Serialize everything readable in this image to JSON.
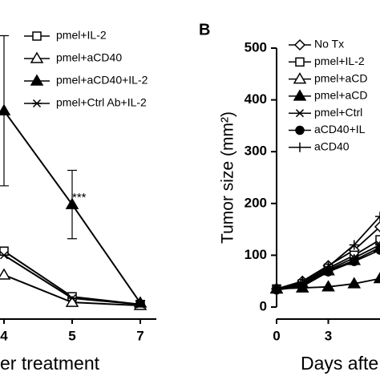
{
  "chart_data": [
    {
      "type": "line",
      "x_label": "er treatment",
      "annotation": "***",
      "categories": [
        "4",
        "5",
        "7"
      ],
      "ylim": [
        0,
        500
      ],
      "series": [
        {
          "name": "pmel+IL-2",
          "color": "#000000",
          "marker": "square",
          "values": [
            108,
            20,
            5
          ]
        },
        {
          "name": "pmel+aCD40",
          "color": "#000000",
          "marker": "triangle",
          "values": [
            62,
            9,
            3
          ]
        },
        {
          "name": "pmel+aCD40+IL-2",
          "color": "#000000",
          "marker": "triangle-filled",
          "values": [
            379,
            198,
            8
          ],
          "errors": [
            145,
            66,
            5
          ]
        },
        {
          "name": "pmel+Ctrl Ab+IL-2",
          "color": "#000000",
          "marker": "asterisk",
          "values": [
            100,
            17,
            5
          ]
        }
      ]
    },
    {
      "type": "line",
      "panel_label": "B",
      "y_label": "Tumor size (mm²)",
      "x_label": "Days afte",
      "x": [
        0,
        1.5,
        3,
        4.5,
        6
      ],
      "xlim": [
        0,
        6
      ],
      "xticks": [
        0,
        3
      ],
      "ylim": [
        0,
        500
      ],
      "yticks": [
        0,
        100,
        200,
        300,
        400,
        500
      ],
      "series": [
        {
          "name": "No Tx",
          "color": "#000000",
          "marker": "diamond",
          "values": [
            35,
            50,
            80,
            110,
            155
          ]
        },
        {
          "name": "pmel+IL-2",
          "color": "#000000",
          "marker": "square",
          "values": [
            35,
            45,
            75,
            100,
            130
          ]
        },
        {
          "name": "pmel+aCD",
          "color": "#000000",
          "marker": "triangle",
          "values": [
            35,
            45,
            70,
            90,
            115
          ]
        },
        {
          "name": "pmel+aCD",
          "color": "#000000",
          "marker": "triangle-filled",
          "values": [
            35,
            37,
            39,
            45,
            55
          ]
        },
        {
          "name": "pmel+Ctrl",
          "color": "#000000",
          "marker": "asterisk",
          "values": [
            35,
            42,
            72,
            95,
            120
          ]
        },
        {
          "name": "aCD40+IL",
          "color": "#000000",
          "marker": "circle-filled",
          "values": [
            33,
            40,
            68,
            88,
            110
          ]
        },
        {
          "name": "aCD40",
          "color": "#000000",
          "marker": "plus",
          "values": [
            35,
            48,
            78,
            120,
            175
          ]
        }
      ]
    }
  ]
}
